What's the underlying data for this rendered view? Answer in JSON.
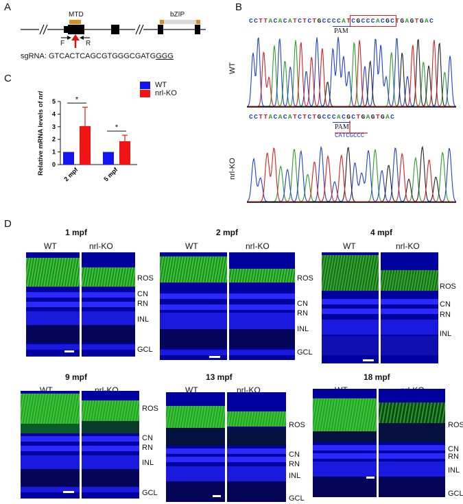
{
  "panels": {
    "a": "A",
    "b": "B",
    "c": "C",
    "d": "D"
  },
  "panel_a": {
    "mtd_label": "MTD",
    "bzip_label": "bZIP",
    "primer_f": "F",
    "primer_r": "R",
    "sgrna_prefix": "sgRNA: ",
    "sgrna_main": "GTCACTCAGCGTGGGCGATG",
    "sgrna_pam": "GGG",
    "colors": {
      "mtd": "#e08a1e",
      "bzip": "#d9d9d9",
      "arrow": "#e01010"
    }
  },
  "panel_b": {
    "wt_label": "WT",
    "ko_label": "nrl-KO",
    "wt_seq": "CCTTACACATCTCTGCCCCATCGCCCACGCTGAGTGAC",
    "ko_seq": "CCTTACACATCTCTGCCCACGCTGAGTGAC",
    "pam_label": "PAM",
    "deleted_seq": "CATCGCCC",
    "base_colors": {
      "A": "#2a9d2a",
      "C": "#1f3fd1",
      "G": "#222222",
      "T": "#d62020"
    }
  },
  "panel_c": {
    "legend_wt": "WT",
    "legend_ko": "nrl-KO",
    "sig_marker": "*",
    "ylabel_main": "Relative mRNA levels of ",
    "ylabel_gene": "nrl",
    "colors": {
      "wt": "#1414f0",
      "ko": "#f01414"
    }
  },
  "chart_data": {
    "type": "bar",
    "categories": [
      "2 mpf",
      "5 mpf"
    ],
    "series": [
      {
        "name": "WT",
        "values": [
          1.0,
          1.0
        ],
        "errors": [
          0,
          0
        ]
      },
      {
        "name": "nrl-KO",
        "values": [
          3.05,
          1.85
        ],
        "errors": [
          1.5,
          0.48
        ]
      }
    ],
    "ylabel": "Relative mRNA levels of nrl",
    "xlabel": "",
    "yticks": [
      0,
      1,
      2,
      3,
      4,
      5
    ],
    "ylim": [
      0,
      5
    ],
    "significance": [
      "*",
      "*"
    ]
  },
  "panel_d": {
    "wt": "WT",
    "ko": "nrl-KO",
    "timepoints": [
      "1 mpf",
      "2 mpf",
      "4 mpf",
      "9 mpf",
      "13 mpf",
      "18 mpf"
    ],
    "layers": {
      "ros": "ROS",
      "cn": "CN",
      "rn": "RN",
      "inl": "INL",
      "gcl": "GCL"
    }
  }
}
